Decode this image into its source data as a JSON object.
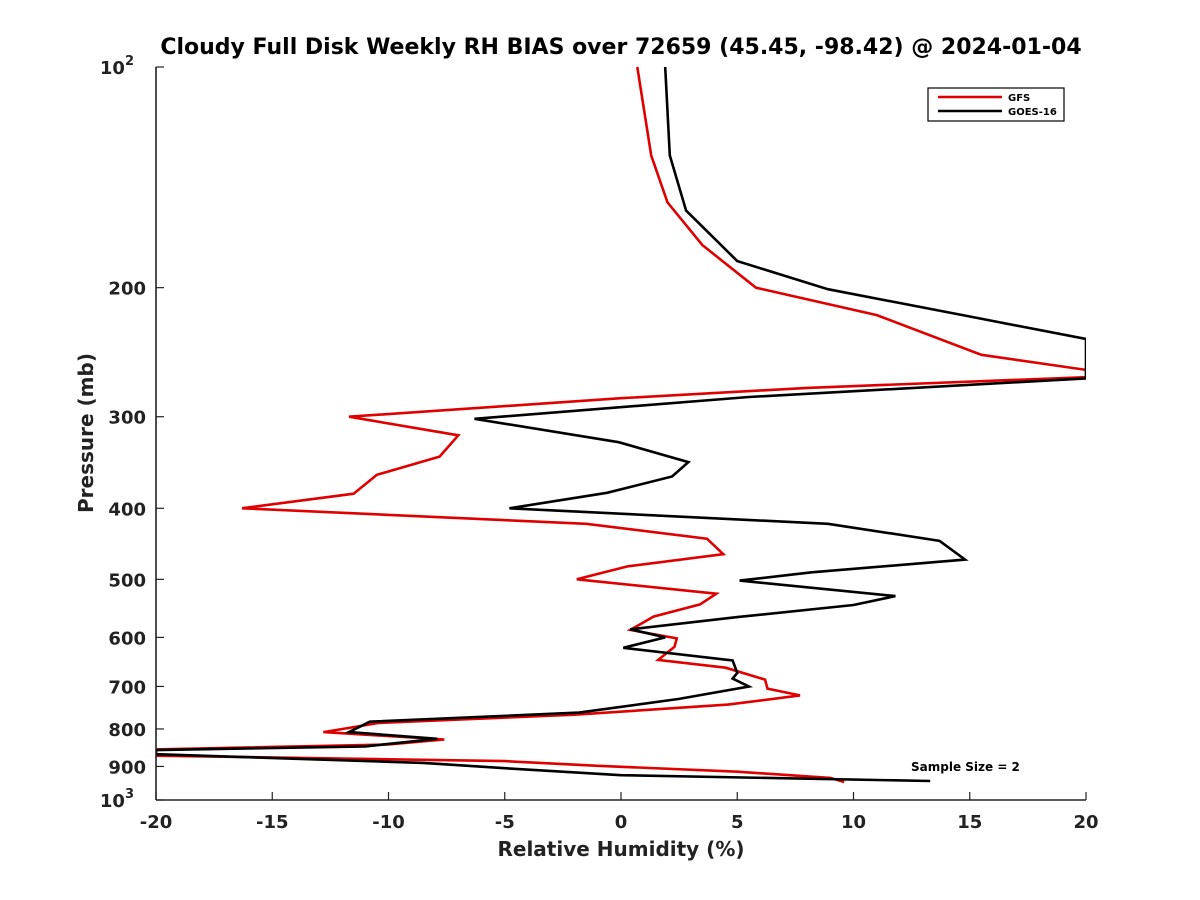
{
  "chart_data": {
    "type": "line",
    "title": "Cloudy Full Disk Weekly RH BIAS over 72659 (45.45, -98.42) @ 2024-01-04",
    "xlabel": "Relative Humidity (%)",
    "ylabel": "Pressure (mb)",
    "xlim": [
      -20,
      20
    ],
    "ylim": [
      100,
      1000
    ],
    "y_scale": "log",
    "y_reversed": true,
    "x_ticks": [
      "-20",
      "-15",
      "-10",
      "-5",
      "0",
      "5",
      "10",
      "15",
      "20"
    ],
    "y_ticks": [
      {
        "value": 100,
        "base": "10",
        "exp": "2"
      },
      {
        "value": 200,
        "label": "200"
      },
      {
        "value": 300,
        "label": "300"
      },
      {
        "value": 400,
        "label": "400"
      },
      {
        "value": 500,
        "label": "500"
      },
      {
        "value": 600,
        "label": "600"
      },
      {
        "value": 700,
        "label": "700"
      },
      {
        "value": 800,
        "label": "800"
      },
      {
        "value": 900,
        "label": "900"
      },
      {
        "value": 1000,
        "base": "10",
        "exp": "3"
      }
    ],
    "grid": false,
    "legend_position": "top-right",
    "annotation": "Sample Size = 2",
    "series": [
      {
        "name": "GFS",
        "color": "#e00000",
        "points": [
          [
            0.7,
            100
          ],
          [
            1.3,
            132
          ],
          [
            2.0,
            153
          ],
          [
            3.5,
            175
          ],
          [
            5.8,
            200
          ],
          [
            11.0,
            218
          ],
          [
            15.5,
            247
          ],
          [
            20.0,
            259
          ],
          [
            20.0,
            265
          ],
          [
            8.0,
            274
          ],
          [
            0.0,
            283
          ],
          [
            -11.7,
            300
          ],
          [
            -7.0,
            318
          ],
          [
            -7.8,
            340
          ],
          [
            -10.5,
            360
          ],
          [
            -11.5,
            382
          ],
          [
            -16.3,
            400
          ],
          [
            -1.5,
            420
          ],
          [
            3.7,
            440
          ],
          [
            4.4,
            462
          ],
          [
            0.3,
            480
          ],
          [
            -1.9,
            500
          ],
          [
            4.1,
            523
          ],
          [
            3.4,
            541
          ],
          [
            1.4,
            562
          ],
          [
            0.4,
            586
          ],
          [
            2.4,
            602
          ],
          [
            2.3,
            618
          ],
          [
            1.6,
            644
          ],
          [
            4.5,
            660
          ],
          [
            6.2,
            685
          ],
          [
            6.3,
            705
          ],
          [
            7.7,
            720
          ],
          [
            4.6,
            741
          ],
          [
            -2.0,
            765
          ],
          [
            -10.4,
            785
          ],
          [
            -12.8,
            808
          ],
          [
            -7.6,
            827
          ],
          [
            -10.0,
            840
          ],
          [
            -20.0,
            853
          ],
          [
            -20.0,
            870
          ],
          [
            -5.0,
            885
          ],
          [
            -1.0,
            898
          ],
          [
            5.0,
            915
          ],
          [
            9.0,
            933
          ],
          [
            9.6,
            945
          ]
        ]
      },
      {
        "name": "GOES-16",
        "color": "#000000",
        "points": [
          [
            1.9,
            100
          ],
          [
            2.1,
            132
          ],
          [
            2.8,
            157
          ],
          [
            5.0,
            184
          ],
          [
            8.9,
            201
          ],
          [
            15.0,
            219
          ],
          [
            20.0,
            235
          ],
          [
            20.0,
            266
          ],
          [
            5.5,
            282
          ],
          [
            -6.3,
            302
          ],
          [
            -0.1,
            325
          ],
          [
            2.9,
            346
          ],
          [
            2.2,
            362
          ],
          [
            -0.6,
            381
          ],
          [
            -4.8,
            400
          ],
          [
            8.9,
            420
          ],
          [
            13.7,
            443
          ],
          [
            14.8,
            470
          ],
          [
            8.2,
            489
          ],
          [
            5.1,
            502
          ],
          [
            11.8,
            527
          ],
          [
            10.0,
            542
          ],
          [
            5.0,
            563
          ],
          [
            0.4,
            585
          ],
          [
            1.9,
            600
          ],
          [
            0.1,
            620
          ],
          [
            4.8,
            645
          ],
          [
            5.0,
            671
          ],
          [
            4.8,
            683
          ],
          [
            5.5,
            700
          ],
          [
            2.5,
            728
          ],
          [
            -1.8,
            760
          ],
          [
            -10.8,
            782
          ],
          [
            -11.7,
            808
          ],
          [
            -7.9,
            825
          ],
          [
            -11.0,
            845
          ],
          [
            -20.0,
            855
          ],
          [
            -20.0,
            866
          ],
          [
            -8.5,
            890
          ],
          [
            -5.0,
            905
          ],
          [
            0.0,
            925
          ],
          [
            13.3,
            942
          ]
        ]
      }
    ]
  }
}
